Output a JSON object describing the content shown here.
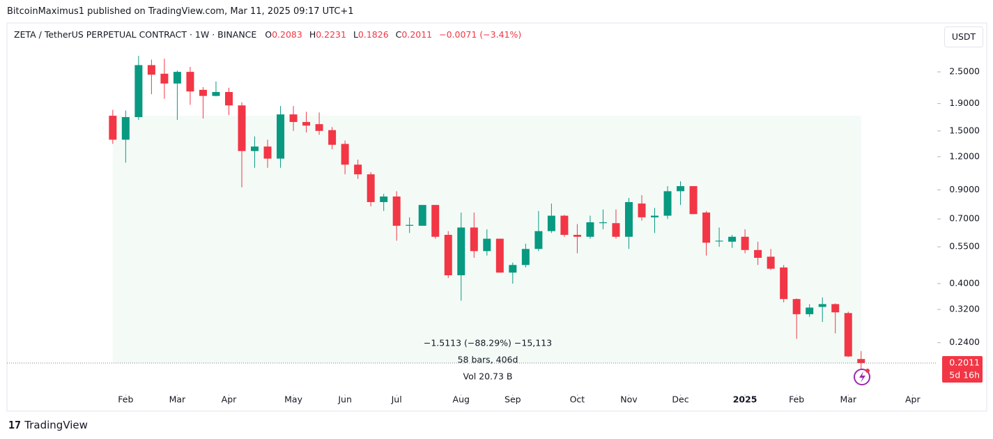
{
  "header": {
    "byline": "BitcoinMaximus1 published on TradingView.com, Mar 11, 2025 09:17 UTC+1",
    "symbol": "ZETA / TetherUS PERPETUAL CONTRACT · 1W · BINANCE",
    "open_label": "O",
    "high_label": "H",
    "low_label": "L",
    "close_label": "C",
    "change": "−0.0071 (−3.41%)",
    "currency": "USDT"
  },
  "chart_data": {
    "type": "candlestick",
    "open": [
      1.71,
      1.39,
      1.69,
      2.65,
      2.46,
      2.26,
      2.5,
      2.14,
      2.03,
      2.1,
      1.87,
      1.26,
      1.31,
      1.18,
      1.73,
      1.62,
      1.59,
      1.51,
      1.34,
      1.12,
      1.03,
      0.81,
      0.85,
      0.66,
      0.66,
      0.79,
      0.61,
      0.43,
      0.65,
      0.53,
      0.59,
      0.44,
      0.47,
      0.54,
      0.63,
      0.72,
      0.61,
      0.6,
      0.675,
      0.675,
      0.6,
      0.8,
      0.71,
      0.72,
      0.89,
      0.93,
      0.74,
      0.576,
      0.575,
      0.6,
      0.535,
      0.505,
      0.46,
      0.35,
      0.307,
      0.327,
      0.335,
      0.31,
      0.2083
    ],
    "high": [
      1.8,
      1.79,
      2.87,
      2.78,
      2.8,
      2.53,
      2.61,
      2.19,
      2.3,
      2.18,
      1.92,
      1.43,
      1.39,
      1.86,
      1.86,
      1.77,
      1.76,
      1.55,
      1.38,
      1.17,
      1.05,
      0.87,
      0.89,
      0.71,
      0.79,
      0.79,
      0.63,
      0.74,
      0.74,
      0.64,
      0.59,
      0.48,
      0.565,
      0.75,
      0.8,
      0.725,
      0.67,
      0.72,
      0.76,
      0.76,
      0.84,
      0.86,
      0.77,
      0.93,
      0.97,
      0.93,
      0.75,
      0.65,
      0.61,
      0.64,
      0.575,
      0.54,
      0.47,
      0.352,
      0.335,
      0.355,
      0.337,
      0.314,
      0.2231
    ],
    "low": [
      1.34,
      1.14,
      1.65,
      2.06,
      1.98,
      1.65,
      1.88,
      1.67,
      2.02,
      1.72,
      0.92,
      1.09,
      1.09,
      1.09,
      1.5,
      1.48,
      1.45,
      1.28,
      1.03,
      0.99,
      0.78,
      0.75,
      0.58,
      0.62,
      0.66,
      0.59,
      0.42,
      0.345,
      0.5,
      0.51,
      0.44,
      0.4,
      0.46,
      0.53,
      0.62,
      0.6,
      0.52,
      0.59,
      0.64,
      0.59,
      0.54,
      0.69,
      0.62,
      0.7,
      0.79,
      0.73,
      0.51,
      0.55,
      0.545,
      0.52,
      0.47,
      0.45,
      0.34,
      0.248,
      0.3,
      0.287,
      0.26,
      0.212,
      0.1826
    ],
    "close": [
      1.39,
      1.69,
      2.65,
      2.44,
      2.26,
      2.5,
      2.11,
      2.03,
      2.1,
      1.87,
      1.26,
      1.31,
      1.18,
      1.73,
      1.62,
      1.57,
      1.5,
      1.33,
      1.12,
      1.03,
      0.81,
      0.85,
      0.66,
      0.665,
      0.79,
      0.6,
      0.43,
      0.65,
      0.53,
      0.59,
      0.44,
      0.47,
      0.54,
      0.63,
      0.72,
      0.61,
      0.6,
      0.68,
      0.68,
      0.6,
      0.81,
      0.71,
      0.72,
      0.89,
      0.93,
      0.73,
      0.57,
      0.58,
      0.6,
      0.535,
      0.5,
      0.455,
      0.35,
      0.307,
      0.325,
      0.335,
      0.312,
      0.213,
      0.2011
    ],
    "up_color": "#089981",
    "down_color": "#f23645",
    "log_scale": true,
    "ylim": [
      0.159,
      3.77
    ],
    "yticks": [
      {
        "value": 2.5,
        "label": "2.5000"
      },
      {
        "value": 1.9,
        "label": "1.9000"
      },
      {
        "value": 1.5,
        "label": "1.5000"
      },
      {
        "value": 1.2,
        "label": "1.2000"
      },
      {
        "value": 0.9,
        "label": "0.9000"
      },
      {
        "value": 0.7,
        "label": "0.7000"
      },
      {
        "value": 0.55,
        "label": "0.5500"
      },
      {
        "value": 0.4,
        "label": "0.4000"
      },
      {
        "value": 0.32,
        "label": "0.3200"
      },
      {
        "value": 0.24,
        "label": "0.2400"
      }
    ],
    "xlim": [
      -8.2,
      63.9
    ],
    "xticks": [
      {
        "value": 1,
        "label": "Feb"
      },
      {
        "value": 5,
        "label": "Mar"
      },
      {
        "value": 9,
        "label": "Apr"
      },
      {
        "value": 14,
        "label": "May"
      },
      {
        "value": 18,
        "label": "Jun"
      },
      {
        "value": 22,
        "label": "Jul"
      },
      {
        "value": 27,
        "label": "Aug"
      },
      {
        "value": 31,
        "label": "Sep"
      },
      {
        "value": 36,
        "label": "Oct"
      },
      {
        "value": 40,
        "label": "Nov"
      },
      {
        "value": 44,
        "label": "Dec"
      },
      {
        "value": 49,
        "label": "2025"
      },
      {
        "value": 53,
        "label": "Feb"
      },
      {
        "value": 57,
        "label": "Mar"
      },
      {
        "value": 62,
        "label": "Apr"
      }
    ],
    "annotations": [
      "−1.5113 (−88.29%) −15,113",
      "58 bars, 406d",
      "Vol 20.73 B"
    ],
    "countdown": "5d 16h"
  },
  "footer": {
    "brand": "TradingView"
  }
}
